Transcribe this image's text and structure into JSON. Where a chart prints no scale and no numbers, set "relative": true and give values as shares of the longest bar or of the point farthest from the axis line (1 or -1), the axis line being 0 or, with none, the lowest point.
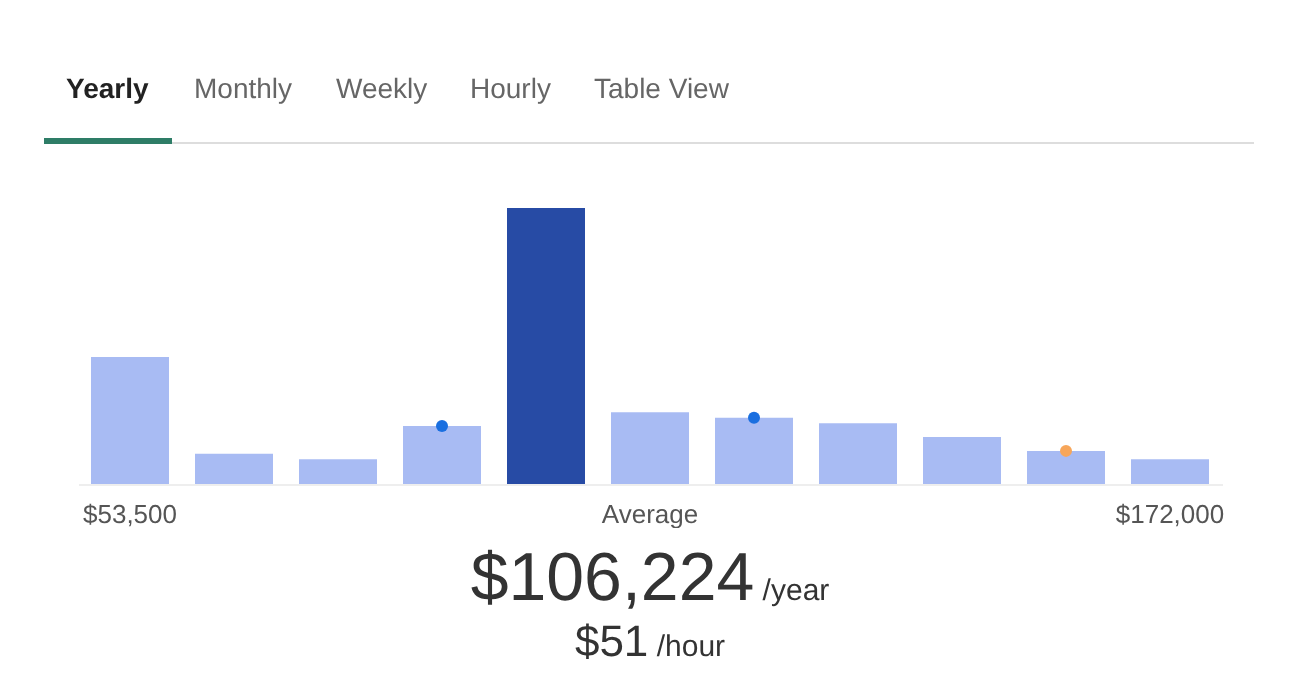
{
  "chart_data": {
    "type": "bar",
    "relative": true,
    "marker": "circle",
    "categories": [
      "$53,500",
      null,
      null,
      null,
      null,
      "Average",
      null,
      null,
      null,
      null,
      "$172,000"
    ],
    "series": [
      {
        "colors": [
          "#a8bbf3",
          "#a8bbf3",
          "#a8bbf3",
          "#a8bbf3",
          "#274ba5",
          "#a8bbf3",
          "#a8bbf3",
          "#a8bbf3",
          "#a8bbf3",
          "#a8bbf3",
          "#a8bbf3"
        ],
        "values": [
          0.46,
          0.11,
          0.09,
          0.21,
          1,
          0.26,
          0.24,
          0.22,
          0.17,
          0.12,
          0.09
        ]
      },
      {
        "type": "scatter",
        "color": "#1a6fe0",
        "values": [
          null,
          null,
          null,
          0.21,
          null,
          null,
          0.24,
          null,
          null,
          null,
          null
        ]
      },
      {
        "type": "scatter",
        "color": "#f7a65a",
        "values": [
          null,
          null,
          null,
          null,
          null,
          null,
          null,
          null,
          null,
          0.12,
          null
        ]
      }
    ],
    "annotations": [
      "Yearly",
      "Monthly",
      "Weekly",
      "Hourly",
      "Table View",
      "$106,224",
      "/year",
      "$51",
      "/hour"
    ]
  }
}
